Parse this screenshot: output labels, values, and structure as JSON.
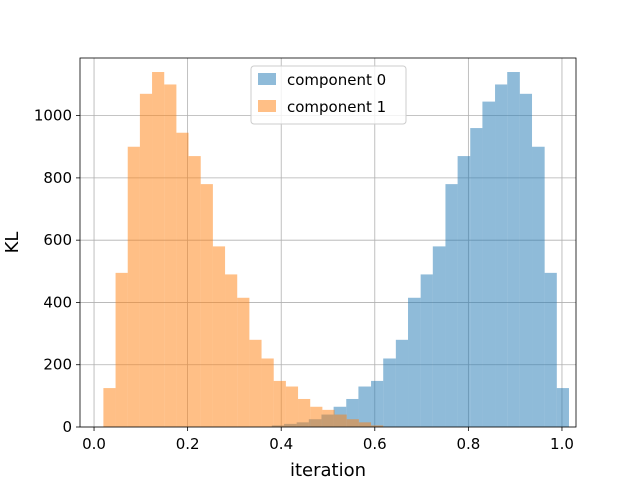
{
  "chart_data": {
    "type": "histogram",
    "title": "",
    "xlabel": "iteration",
    "ylabel": "KL",
    "xlim": [
      -0.03,
      1.03
    ],
    "ylim": [
      0,
      1185
    ],
    "grid": true,
    "legend_placement": "top-center",
    "x_ticks": [
      0.0,
      0.2,
      0.4,
      0.6,
      0.8,
      1.0
    ],
    "x_tick_labels": [
      "0.0",
      "0.2",
      "0.4",
      "0.6",
      "0.8",
      "1.0"
    ],
    "y_ticks": [
      0,
      200,
      400,
      600,
      800,
      1000
    ],
    "y_tick_labels": [
      "0",
      "200",
      "400",
      "600",
      "800",
      "1000"
    ],
    "series": [
      {
        "name": "component 0",
        "color": "#1f77b4",
        "opacity": 0.5,
        "bins": [
          {
            "x0": 0.38,
            "x1": 0.406,
            "count": 5
          },
          {
            "x0": 0.406,
            "x1": 0.433,
            "count": 10
          },
          {
            "x0": 0.433,
            "x1": 0.459,
            "count": 15
          },
          {
            "x0": 0.459,
            "x1": 0.486,
            "count": 25
          },
          {
            "x0": 0.486,
            "x1": 0.512,
            "count": 40
          },
          {
            "x0": 0.512,
            "x1": 0.539,
            "count": 65
          },
          {
            "x0": 0.539,
            "x1": 0.565,
            "count": 90
          },
          {
            "x0": 0.565,
            "x1": 0.592,
            "count": 130
          },
          {
            "x0": 0.592,
            "x1": 0.618,
            "count": 148
          },
          {
            "x0": 0.618,
            "x1": 0.645,
            "count": 220
          },
          {
            "x0": 0.645,
            "x1": 0.671,
            "count": 280
          },
          {
            "x0": 0.671,
            "x1": 0.698,
            "count": 415
          },
          {
            "x0": 0.698,
            "x1": 0.724,
            "count": 490
          },
          {
            "x0": 0.724,
            "x1": 0.751,
            "count": 580
          },
          {
            "x0": 0.751,
            "x1": 0.777,
            "count": 780
          },
          {
            "x0": 0.777,
            "x1": 0.804,
            "count": 870
          },
          {
            "x0": 0.804,
            "x1": 0.83,
            "count": 960
          },
          {
            "x0": 0.83,
            "x1": 0.857,
            "count": 1045
          },
          {
            "x0": 0.857,
            "x1": 0.883,
            "count": 1100
          },
          {
            "x0": 0.883,
            "x1": 0.91,
            "count": 1140
          },
          {
            "x0": 0.91,
            "x1": 0.936,
            "count": 1070
          },
          {
            "x0": 0.936,
            "x1": 0.963,
            "count": 900
          },
          {
            "x0": 0.963,
            "x1": 0.989,
            "count": 495
          },
          {
            "x0": 0.989,
            "x1": 1.015,
            "count": 125
          }
        ]
      },
      {
        "name": "component 1",
        "color": "#ff7f0e",
        "opacity": 0.5,
        "bins": [
          {
            "x0": 0.02,
            "x1": 0.046,
            "count": 125
          },
          {
            "x0": 0.046,
            "x1": 0.072,
            "count": 495
          },
          {
            "x0": 0.072,
            "x1": 0.098,
            "count": 900
          },
          {
            "x0": 0.098,
            "x1": 0.124,
            "count": 1070
          },
          {
            "x0": 0.124,
            "x1": 0.15,
            "count": 1140
          },
          {
            "x0": 0.15,
            "x1": 0.176,
            "count": 1100
          },
          {
            "x0": 0.176,
            "x1": 0.202,
            "count": 945
          },
          {
            "x0": 0.202,
            "x1": 0.228,
            "count": 870
          },
          {
            "x0": 0.228,
            "x1": 0.254,
            "count": 780
          },
          {
            "x0": 0.254,
            "x1": 0.28,
            "count": 580
          },
          {
            "x0": 0.28,
            "x1": 0.306,
            "count": 490
          },
          {
            "x0": 0.306,
            "x1": 0.332,
            "count": 415
          },
          {
            "x0": 0.332,
            "x1": 0.358,
            "count": 280
          },
          {
            "x0": 0.358,
            "x1": 0.384,
            "count": 220
          },
          {
            "x0": 0.384,
            "x1": 0.41,
            "count": 148
          },
          {
            "x0": 0.41,
            "x1": 0.436,
            "count": 130
          },
          {
            "x0": 0.436,
            "x1": 0.462,
            "count": 90
          },
          {
            "x0": 0.462,
            "x1": 0.488,
            "count": 65
          },
          {
            "x0": 0.488,
            "x1": 0.514,
            "count": 55
          },
          {
            "x0": 0.514,
            "x1": 0.54,
            "count": 40
          },
          {
            "x0": 0.54,
            "x1": 0.566,
            "count": 25
          },
          {
            "x0": 0.566,
            "x1": 0.592,
            "count": 15
          },
          {
            "x0": 0.592,
            "x1": 0.618,
            "count": 5
          }
        ]
      }
    ]
  }
}
